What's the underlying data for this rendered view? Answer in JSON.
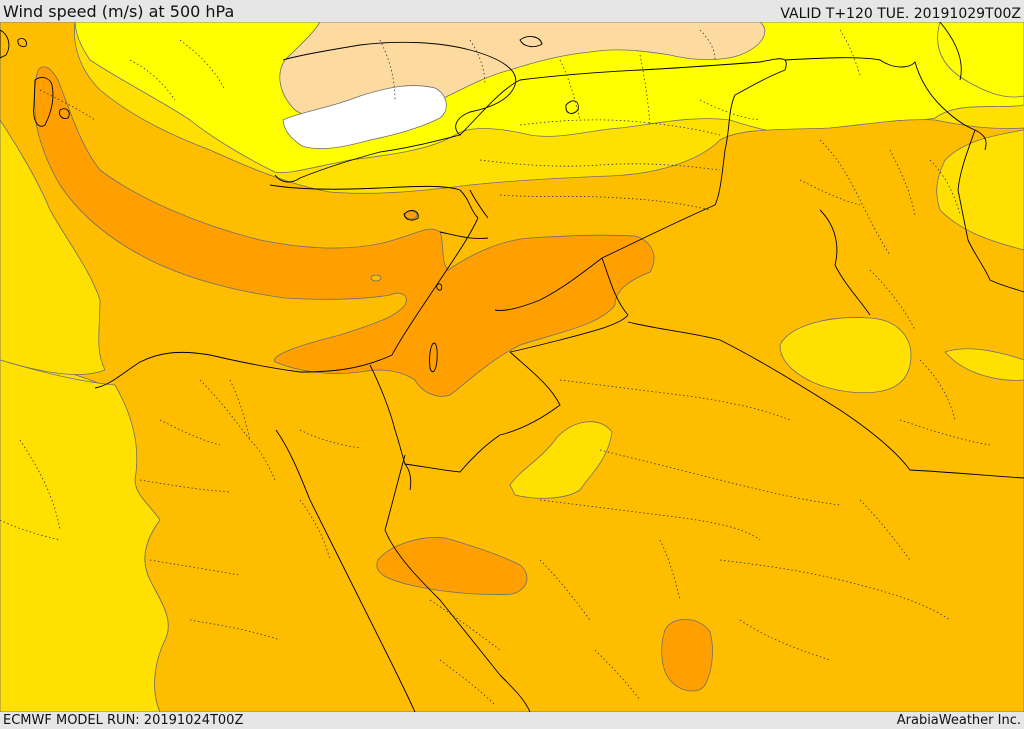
{
  "header": {
    "title": "Wind speed (m/s) at 500 hPa",
    "valid": "VALID T+120 TUE. 20191029T00Z"
  },
  "footer": {
    "model_run": "ECMWF MODEL RUN: 20191024T00Z",
    "provider": "ArabiaWeather Inc."
  },
  "colors": {
    "band_white": "#ffffff",
    "band_peach": "#fddba0",
    "band_light_yellow": "#ffff00",
    "band_yellow": "#ffe000",
    "band_light_orange": "#ffbd00",
    "band_orange": "#ffa000",
    "contour_line": "#6f6f6f",
    "coastline": "#000000",
    "border_dotted": "#333333"
  },
  "map": {
    "projection_region": "Eastern Mediterranean / Middle East",
    "layers": [
      "wind-speed-fill",
      "contour-lines",
      "coastlines",
      "country-borders",
      "province-borders"
    ]
  }
}
